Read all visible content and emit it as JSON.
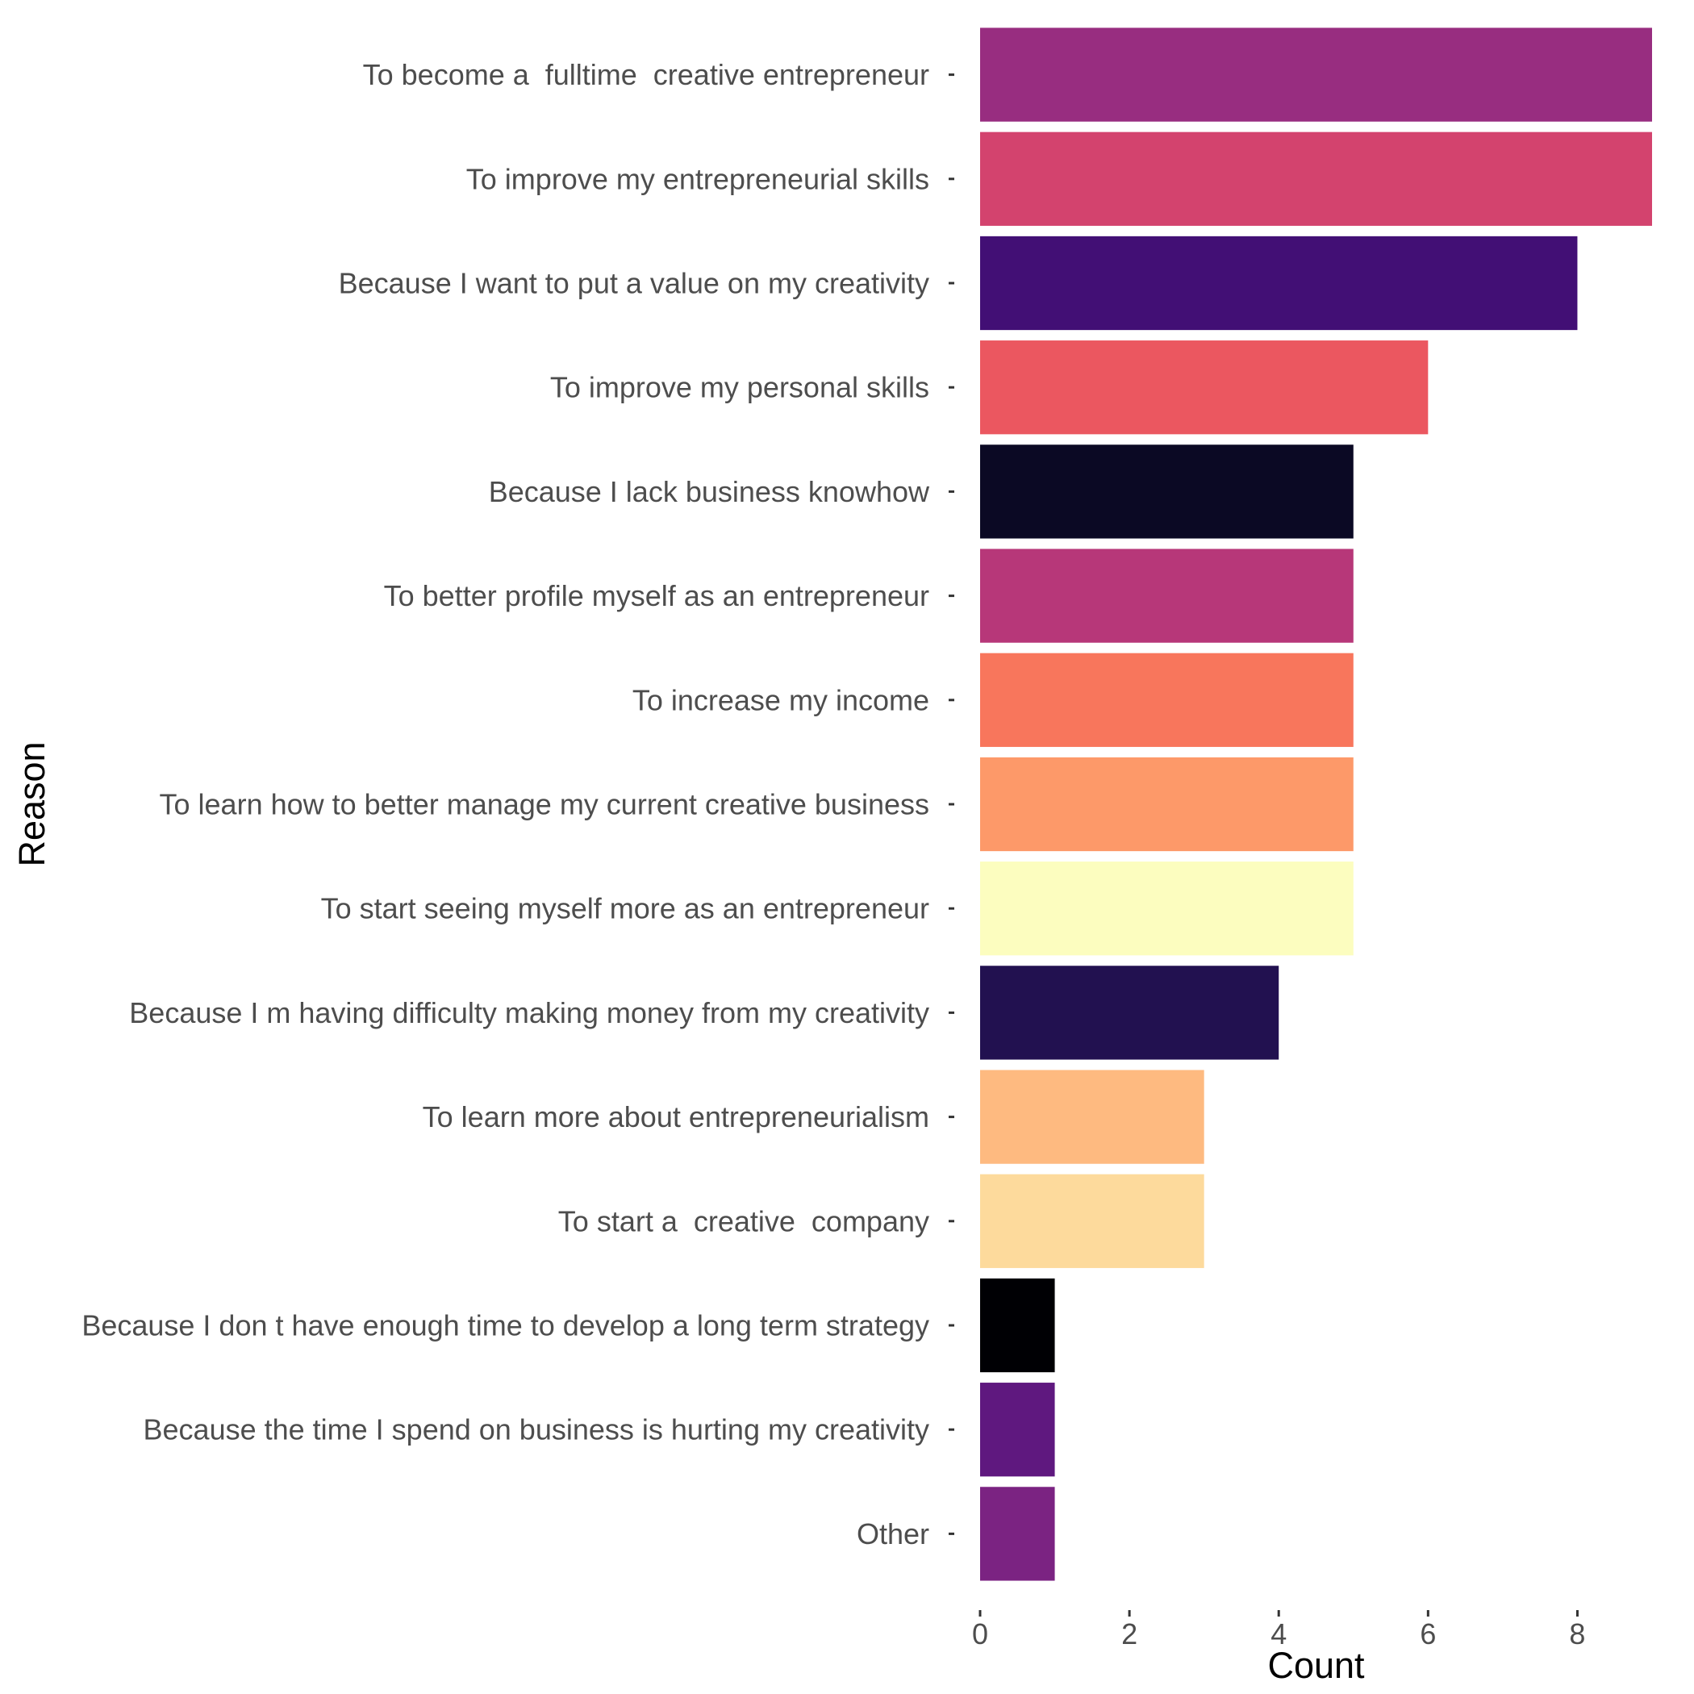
{
  "chart_data": {
    "type": "bar",
    "orientation": "horizontal",
    "xlabel": "Count",
    "ylabel": "Reason",
    "xlim": [
      0,
      9
    ],
    "x_ticks": [
      0,
      2,
      4,
      6,
      8
    ],
    "x_tick_labels": [
      "0",
      "2",
      "4",
      "6",
      "8"
    ],
    "grid": false,
    "legend": "none",
    "categories": [
      "To become a  fulltime  creative entrepreneur",
      "To improve my entrepreneurial skills",
      "Because I want to put a value on my creativity",
      "To improve my personal skills",
      "Because I lack business knowhow",
      "To better profile myself as an entrepreneur",
      "To increase my income",
      "To learn how to better manage my current creative business",
      "To start seeing myself more as an entrepreneur",
      "Because I m having difficulty making money from my creativity",
      "To learn more about entrepreneurialism",
      "To start a  creative  company",
      "Because I don t have enough time to develop a long term strategy",
      "Because the time I spend on business is hurting my creativity",
      "Other"
    ],
    "values": [
      9,
      9,
      8,
      6,
      5,
      5,
      5,
      5,
      5,
      4,
      3,
      3,
      1,
      1,
      1
    ],
    "colors": [
      "#982D80",
      "#D3436E",
      "#420F75",
      "#EB5760",
      "#0B0924",
      "#B73779",
      "#F8765C",
      "#FD9969",
      "#FCFDBF",
      "#221150",
      "#FEBA80",
      "#FDDA9C",
      "#000004",
      "#5F187F",
      "#7B2382"
    ]
  }
}
